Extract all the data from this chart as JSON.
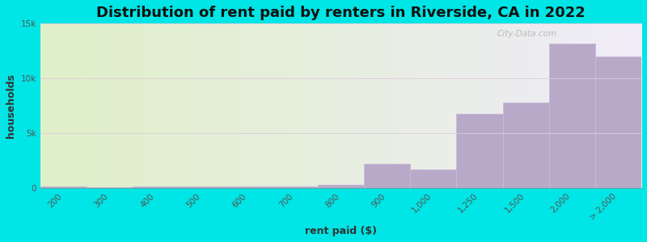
{
  "title": "Distribution of rent paid by renters in Riverside, CA in 2022",
  "xlabel": "rent paid ($)",
  "ylabel": "households",
  "categories": [
    "200",
    "300",
    "400",
    "500",
    "600",
    "700",
    "800",
    "900",
    "1,000",
    "1,250",
    "1,500",
    "2,000",
    "> 2,000"
  ],
  "values": [
    200,
    100,
    200,
    200,
    150,
    150,
    300,
    2200,
    1700,
    6800,
    7800,
    13200,
    12000
  ],
  "bar_color": "#b8a9c9",
  "bar_edge_color": "#c8bbd8",
  "background_outer": "#00e5e5",
  "plot_bg_left": "#dff0c8",
  "plot_bg_right": "#f0ecf8",
  "title_fontsize": 13,
  "axis_label_fontsize": 9,
  "tick_fontsize": 7.5,
  "ylim": [
    0,
    15000
  ],
  "yticks": [
    0,
    5000,
    10000,
    15000
  ],
  "ytick_labels": [
    "0",
    "5k",
    "10k",
    "15k"
  ],
  "watermark": "City-Data.com"
}
